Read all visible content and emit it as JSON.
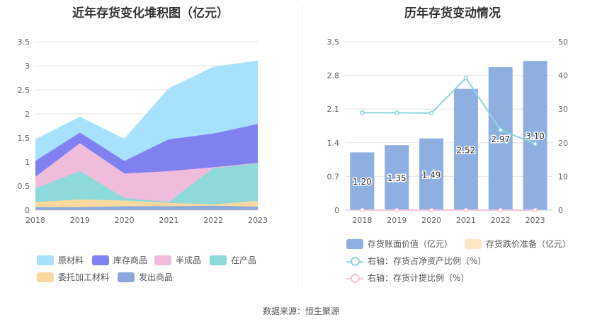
{
  "left_title": "近年存货变化堆积图（亿元）",
  "right_title": "历年存货变动情况",
  "source": "数据来源：恒生聚源",
  "legend_left": [
    {
      "label": "原材料",
      "color": "#a8e1fb"
    },
    {
      "label": "库存商品",
      "color": "#8080f0"
    },
    {
      "label": "半成品",
      "color": "#f0bcdb"
    },
    {
      "label": "在产品",
      "color": "#8ed9da"
    },
    {
      "label": "委托加工材料",
      "color": "#fad9a0"
    },
    {
      "label": "发出商品",
      "color": "#8aa8dc"
    }
  ],
  "legend_right": [
    {
      "label": "存货账面价值（亿元）",
      "color": "#8eafe0",
      "kind": "bar"
    },
    {
      "label": "存货跌价准备（亿元）",
      "color": "#fde6c4",
      "kind": "bar"
    },
    {
      "label": "右轴：存货占净资产比例（%）",
      "color": "#8dd7dd",
      "kind": "line"
    },
    {
      "label": "右轴：存货计提比例（%）",
      "color": "#f2c6dc",
      "kind": "line"
    }
  ],
  "chart_data": [
    {
      "type": "area",
      "title": "近年存货变化堆积图（亿元）",
      "categories": [
        "2018",
        "2019",
        "2020",
        "2021",
        "2022",
        "2023"
      ],
      "ylim": [
        0,
        3.5
      ],
      "yticks": [
        "0",
        "0.5",
        "1",
        "1.5",
        "2",
        "2.5",
        "3",
        "3.5"
      ],
      "stacked": true,
      "grid": true,
      "legend_position": "bottom",
      "series": [
        {
          "name": "发出商品",
          "color": "#8aa8dc",
          "values": [
            0.05,
            0.05,
            0.07,
            0.07,
            0.08,
            0.06
          ]
        },
        {
          "name": "委托加工材料",
          "color": "#fad9a0",
          "values": [
            0.11,
            0.16,
            0.12,
            0.07,
            0.03,
            0.12
          ]
        },
        {
          "name": "在产品",
          "color": "#8ed9da",
          "values": [
            0.28,
            0.59,
            0.05,
            0.02,
            0.75,
            0.78
          ]
        },
        {
          "name": "半成品",
          "color": "#f0bcdb",
          "values": [
            0.24,
            0.58,
            0.51,
            0.64,
            0.02,
            0.01
          ]
        },
        {
          "name": "库存商品",
          "color": "#8080f0",
          "values": [
            0.33,
            0.22,
            0.26,
            0.66,
            0.7,
            0.81
          ]
        },
        {
          "name": "原材料",
          "color": "#a8e1fb",
          "values": [
            0.45,
            0.33,
            0.46,
            1.06,
            1.39,
            1.32
          ]
        }
      ]
    },
    {
      "type": "bar",
      "title": "历年存货变动情况",
      "categories": [
        "2018",
        "2019",
        "2020",
        "2021",
        "2022",
        "2023"
      ],
      "ylim": [
        0,
        3.5
      ],
      "yticks": [
        "0",
        "0.7",
        "1.4",
        "2.1",
        "2.8",
        "3.5"
      ],
      "y2lim": [
        0,
        50
      ],
      "y2ticks": [
        "0",
        "10",
        "20",
        "30",
        "40",
        "50"
      ],
      "grid": true,
      "legend_position": "bottom",
      "series": [
        {
          "name": "存货账面价值（亿元）",
          "color": "#8eafe0",
          "values": [
            1.2,
            1.35,
            1.49,
            2.52,
            2.97,
            3.1
          ],
          "labels": [
            "1.20",
            "1.35",
            "1.49",
            "2.52",
            "2.97",
            "3.10"
          ]
        },
        {
          "name": "存货跌价准备（亿元）",
          "color": "#fde6c4",
          "values": [
            0,
            0,
            0,
            0,
            0,
            0
          ]
        },
        {
          "name": "右轴：存货占净资产比例（%）",
          "color": "#8dd7dd",
          "axis": "right",
          "values": [
            28.9,
            28.9,
            28.8,
            39.2,
            23.8,
            19.7
          ]
        },
        {
          "name": "右轴：存货计提比例（%）",
          "color": "#f2c6dc",
          "axis": "right",
          "values": [
            0,
            0,
            0,
            0,
            0,
            0
          ]
        }
      ]
    }
  ]
}
